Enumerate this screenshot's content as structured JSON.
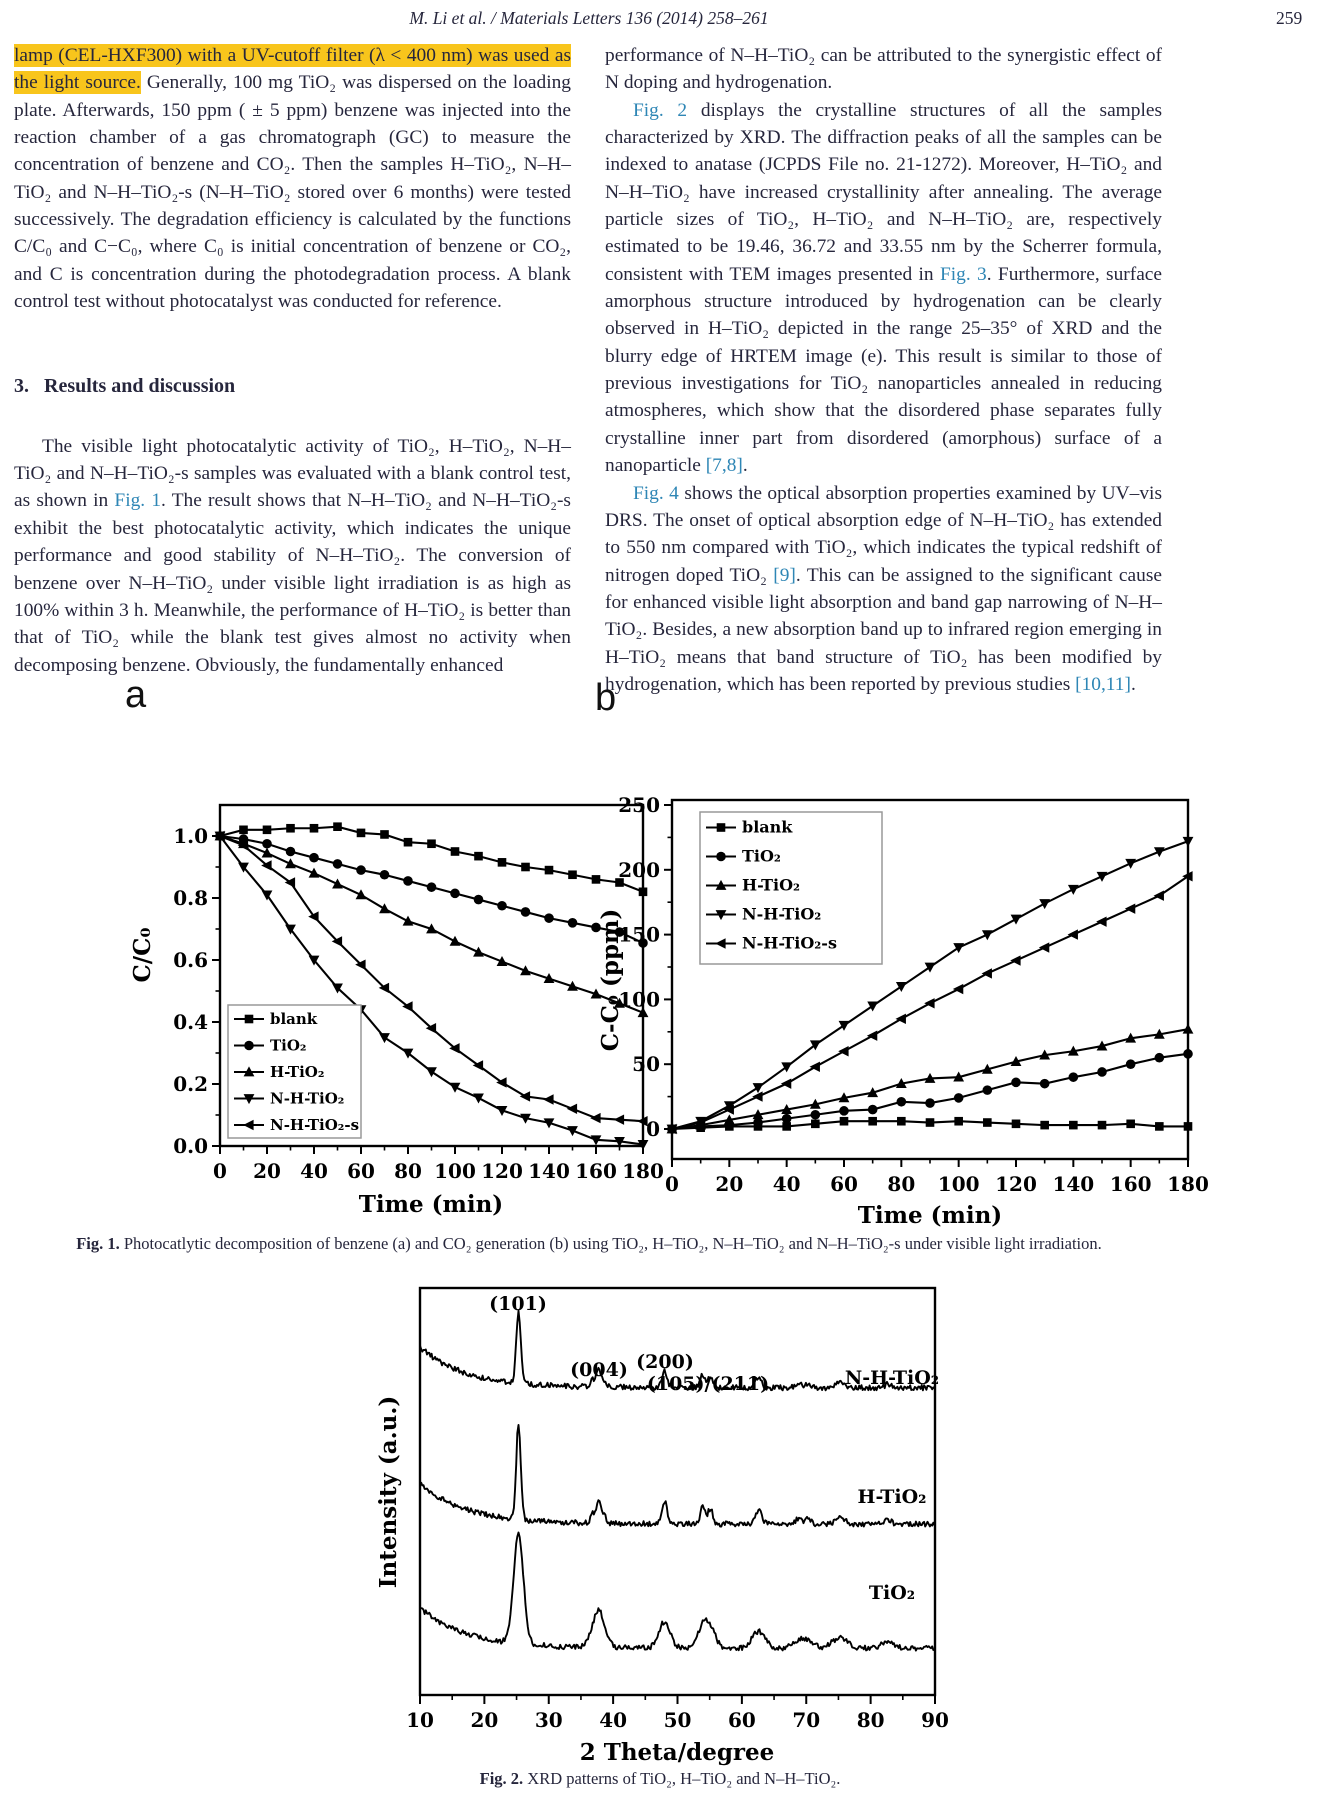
{
  "page": {
    "header": "M. Li et al. / Materials Letters 136 (2014) 258–261",
    "page_number": "259"
  },
  "left_column": {
    "para1": [
      {
        "t": "lamp (CEL-HXF300) with a UV-cutoff filter (λ < 400 nm) was used as the light source.",
        "s": "hl"
      },
      {
        "t": " Generally, 100 mg TiO₂ was dispersed on the loading plate. Afterwards, 150 ppm ( ± 5 ppm) benzene was injected into the reaction chamber of a gas chromatograph (GC) to measure the concentration of benzene and CO₂. Then the samples H–TiO₂, N–H–TiO₂ and N–H–TiO₂-s (N–H–TiO₂ stored over 6 months) were tested successively. The degradation efficiency is calculated by the functions C/C₀ and C−C₀, where C₀ is initial concentration of benzene or CO₂, and C is concentration during the photodegradation process. A blank control test without photocatalyst was conducted for reference.",
        "s": ""
      }
    ],
    "heading": "3.   Results and discussion",
    "para2": [
      {
        "t": "The visible light photocatalytic activity of TiO₂, H–TiO₂, N–H–TiO₂ and N–H–TiO₂-s samples was evaluated with a blank control test, as shown in ",
        "s": ""
      },
      {
        "t": "Fig. 1",
        "s": "link"
      },
      {
        "t": ". The result shows that N–H–TiO₂ and N–H–TiO₂-s exhibit the best photocatalytic activity, which indicates the unique performance and good stability of N–H–TiO₂. The conversion of benzene over N–H–TiO₂ under visible light irradiation is as high as 100% within 3 h. Meanwhile, the performance of H–TiO₂ is better than that of TiO₂ while the blank test gives almost no activity when decomposing benzene. Obviously, the fundamentally enhanced",
        "s": ""
      }
    ]
  },
  "right_column": {
    "para1": [
      {
        "t": "performance of N–H–TiO₂ can be attributed to the synergistic effect of N doping and hydrogenation.",
        "s": ""
      }
    ],
    "para2": [
      {
        "t": "Fig. 2",
        "s": "link"
      },
      {
        "t": " displays the crystalline structures of all the samples characterized by XRD. The diffraction peaks of all the samples can be indexed to anatase (JCPDS File no. 21-1272). Moreover, H–TiO₂ and N–H–TiO₂ have increased crystallinity after annealing. The average particle sizes of TiO₂, H–TiO₂ and N–H–TiO₂ are, respectively estimated to be 19.46, 36.72 and 33.55 nm by the Scherrer formula, consistent with TEM images presented in ",
        "s": ""
      },
      {
        "t": "Fig. 3",
        "s": "link"
      },
      {
        "t": ". Furthermore, surface amorphous structure introduced by hydrogenation can be clearly observed in H–TiO₂ depicted in the range 25–35° of XRD and the blurry edge of HRTEM image (e). This result is similar to those of previous investigations for TiO₂ nanoparticles annealed in reducing atmospheres, which show that the disordered phase separates fully crystalline inner part from disordered (amorphous) surface of a nanoparticle ",
        "s": ""
      },
      {
        "t": "[7,8]",
        "s": "link"
      },
      {
        "t": ".",
        "s": ""
      }
    ],
    "para3": [
      {
        "t": "Fig. 4",
        "s": "link"
      },
      {
        "t": " shows the optical absorption properties examined by UV–vis DRS. The onset of optical absorption edge of N–H–TiO₂ has extended to 550 nm compared with TiO₂, which indicates the typical redshift of nitrogen doped TiO₂ ",
        "s": ""
      },
      {
        "t": "[9]",
        "s": "link"
      },
      {
        "t": ". This can be assigned to the significant cause for enhanced visible light absorption and band gap narrowing of N–H–TiO₂. Besides, a new absorption band up to infrared region emerging in H–TiO₂ means that band structure of TiO₂ has been modified by hydrogenation, which has been reported by previous studies ",
        "s": ""
      },
      {
        "t": "[10,11]",
        "s": "link"
      },
      {
        "t": ".",
        "s": ""
      }
    ]
  },
  "figures": {
    "fig1_caption": [
      {
        "t": "Fig. 1.",
        "s": "bold"
      },
      {
        "t": " Photocatlytic decomposition of benzene (a) and CO₂ generation (b) using TiO₂, H–TiO₂, N–H–TiO₂ and N–H–TiO₂-s under visible light irradiation.",
        "s": ""
      }
    ],
    "fig2_caption": [
      {
        "t": "Fig. 2.",
        "s": "bold"
      },
      {
        "t": " XRD patterns of TiO₂, H–TiO₂ and N–H–TiO₂.",
        "s": ""
      }
    ]
  },
  "chart_data": [
    {
      "id": "fig1a",
      "type": "line",
      "panel_label": "a",
      "xlabel": "Time (min)",
      "ylabel": "C/C₀",
      "xlim": [
        0,
        180
      ],
      "ylim": [
        0.0,
        1.1
      ],
      "x_ticks": [
        0,
        20,
        40,
        60,
        80,
        100,
        120,
        140,
        160,
        180
      ],
      "x_tick_labels": [
        "0",
        "20",
        "40",
        "60",
        "80",
        "100",
        "120",
        "140",
        "160",
        "180"
      ],
      "y_ticks": [
        0,
        0.2,
        0.4,
        0.6,
        0.8,
        1.0
      ],
      "y_tick_labels": [
        "0.0",
        "0.2",
        "0.4",
        "0.6",
        "0.8",
        "1.0"
      ],
      "legend_position": "lower-left",
      "x": [
        0,
        10,
        20,
        30,
        40,
        50,
        60,
        70,
        80,
        90,
        100,
        110,
        120,
        130,
        140,
        150,
        160,
        170,
        180
      ],
      "series": [
        {
          "name": "blank",
          "marker": "square",
          "values": [
            1.0,
            1.02,
            1.02,
            1.025,
            1.025,
            1.03,
            1.01,
            1.005,
            0.98,
            0.975,
            0.95,
            0.935,
            0.915,
            0.9,
            0.89,
            0.875,
            0.86,
            0.85,
            0.82
          ]
        },
        {
          "name": "TiO₂",
          "marker": "circle",
          "values": [
            1.0,
            0.99,
            0.975,
            0.95,
            0.93,
            0.91,
            0.89,
            0.875,
            0.855,
            0.835,
            0.815,
            0.795,
            0.775,
            0.755,
            0.735,
            0.72,
            0.705,
            0.69,
            0.655
          ]
        },
        {
          "name": "H-TiO₂",
          "marker": "triangle-up",
          "values": [
            1.0,
            0.975,
            0.945,
            0.91,
            0.88,
            0.845,
            0.81,
            0.765,
            0.725,
            0.7,
            0.66,
            0.625,
            0.595,
            0.565,
            0.54,
            0.515,
            0.49,
            0.46,
            0.43
          ]
        },
        {
          "name": "N-H-TiO₂",
          "marker": "triangle-down",
          "values": [
            1.0,
            0.9,
            0.81,
            0.7,
            0.6,
            0.51,
            0.44,
            0.35,
            0.3,
            0.24,
            0.19,
            0.155,
            0.115,
            0.09,
            0.075,
            0.05,
            0.02,
            0.015,
            0.005
          ]
        },
        {
          "name": "N-H-TiO₂-s",
          "marker": "triangle-left",
          "values": [
            1.0,
            0.97,
            0.905,
            0.85,
            0.74,
            0.66,
            0.585,
            0.51,
            0.45,
            0.38,
            0.315,
            0.26,
            0.205,
            0.16,
            0.15,
            0.12,
            0.09,
            0.085,
            0.08
          ]
        }
      ]
    },
    {
      "id": "fig1b",
      "type": "line",
      "panel_label": "b",
      "xlabel": "Time (min)",
      "ylabel": "C-C₀ (ppm)",
      "xlim": [
        0,
        180
      ],
      "ylim": [
        0,
        250
      ],
      "x_ticks": [
        0,
        20,
        40,
        60,
        80,
        100,
        120,
        140,
        160,
        180
      ],
      "x_tick_labels": [
        "0",
        "20",
        "40",
        "60",
        "80",
        "100",
        "120",
        "140",
        "160",
        "180"
      ],
      "y_ticks": [
        0,
        50,
        100,
        150,
        200,
        250
      ],
      "y_tick_labels": [
        "0",
        "50",
        "100",
        "150",
        "200",
        "250"
      ],
      "legend_position": "upper-left",
      "x": [
        0,
        10,
        20,
        30,
        40,
        50,
        60,
        70,
        80,
        90,
        100,
        110,
        120,
        130,
        140,
        150,
        160,
        170,
        180
      ],
      "series": [
        {
          "name": "blank",
          "marker": "square",
          "values": [
            0,
            1,
            2,
            2,
            2,
            4,
            6,
            6,
            6,
            5,
            6,
            5,
            4,
            3,
            3,
            3,
            4,
            2,
            2
          ]
        },
        {
          "name": "TiO₂",
          "marker": "circle",
          "values": [
            0,
            2,
            3,
            5,
            8,
            11,
            14,
            15,
            21,
            20,
            24,
            30,
            36,
            35,
            40,
            44,
            50,
            55,
            58
          ]
        },
        {
          "name": "H-TiO₂",
          "marker": "triangle-up",
          "values": [
            0,
            3,
            7,
            11,
            15,
            19,
            24,
            28,
            35,
            39,
            40,
            46,
            52,
            57,
            60,
            64,
            70,
            73,
            77
          ]
        },
        {
          "name": "N-H-TiO₂",
          "marker": "triangle-down",
          "values": [
            0,
            6,
            18,
            32,
            48,
            65,
            80,
            95,
            110,
            125,
            140,
            150,
            162,
            174,
            185,
            195,
            205,
            214,
            222
          ]
        },
        {
          "name": "N-H-TiO₂-s",
          "marker": "triangle-left",
          "values": [
            0,
            5,
            15,
            25,
            35,
            48,
            60,
            72,
            85,
            97,
            108,
            120,
            130,
            140,
            150,
            160,
            170,
            180,
            195
          ]
        }
      ]
    },
    {
      "id": "fig2",
      "type": "line",
      "xlabel": "2 Theta/degree",
      "ylabel": "Intensity (a.u.)",
      "xlim": [
        10,
        90
      ],
      "x_ticks": [
        10,
        20,
        30,
        40,
        50,
        60,
        70,
        80,
        90
      ],
      "x_tick_labels": [
        "10",
        "20",
        "30",
        "40",
        "50",
        "60",
        "70",
        "80",
        "90"
      ],
      "y_axis_note": "arbitrary units, no ticks",
      "peak_labels": [
        "(101)",
        "(004)",
        "(200)",
        "(105)/(211)"
      ],
      "anatase_peaks": [
        [
          25.3,
          1.0,
          0.35
        ],
        [
          36.9,
          0.1,
          0.35
        ],
        [
          37.8,
          0.24,
          0.35
        ],
        [
          38.6,
          0.08,
          0.35
        ],
        [
          48.0,
          0.24,
          0.4
        ],
        [
          53.9,
          0.18,
          0.38
        ],
        [
          55.1,
          0.16,
          0.38
        ],
        [
          62.1,
          0.04,
          0.4
        ],
        [
          62.7,
          0.12,
          0.45
        ],
        [
          68.8,
          0.06,
          0.45
        ],
        [
          70.3,
          0.06,
          0.45
        ],
        [
          75.0,
          0.08,
          0.5
        ],
        [
          76.1,
          0.03,
          0.4
        ],
        [
          82.7,
          0.05,
          0.5
        ]
      ],
      "series": [
        {
          "name": "N-H-TiO₂",
          "baseline_offset": 0.755,
          "peak_amplitude": 0.175,
          "width_mult": 1.0
        },
        {
          "name": "H-TiO₂",
          "baseline_offset": 0.42,
          "peak_amplitude": 0.235,
          "width_mult": 1.0
        },
        {
          "name": "TiO₂",
          "baseline_offset": 0.115,
          "peak_amplitude": 0.27,
          "width_mult": 2.2
        }
      ]
    }
  ]
}
